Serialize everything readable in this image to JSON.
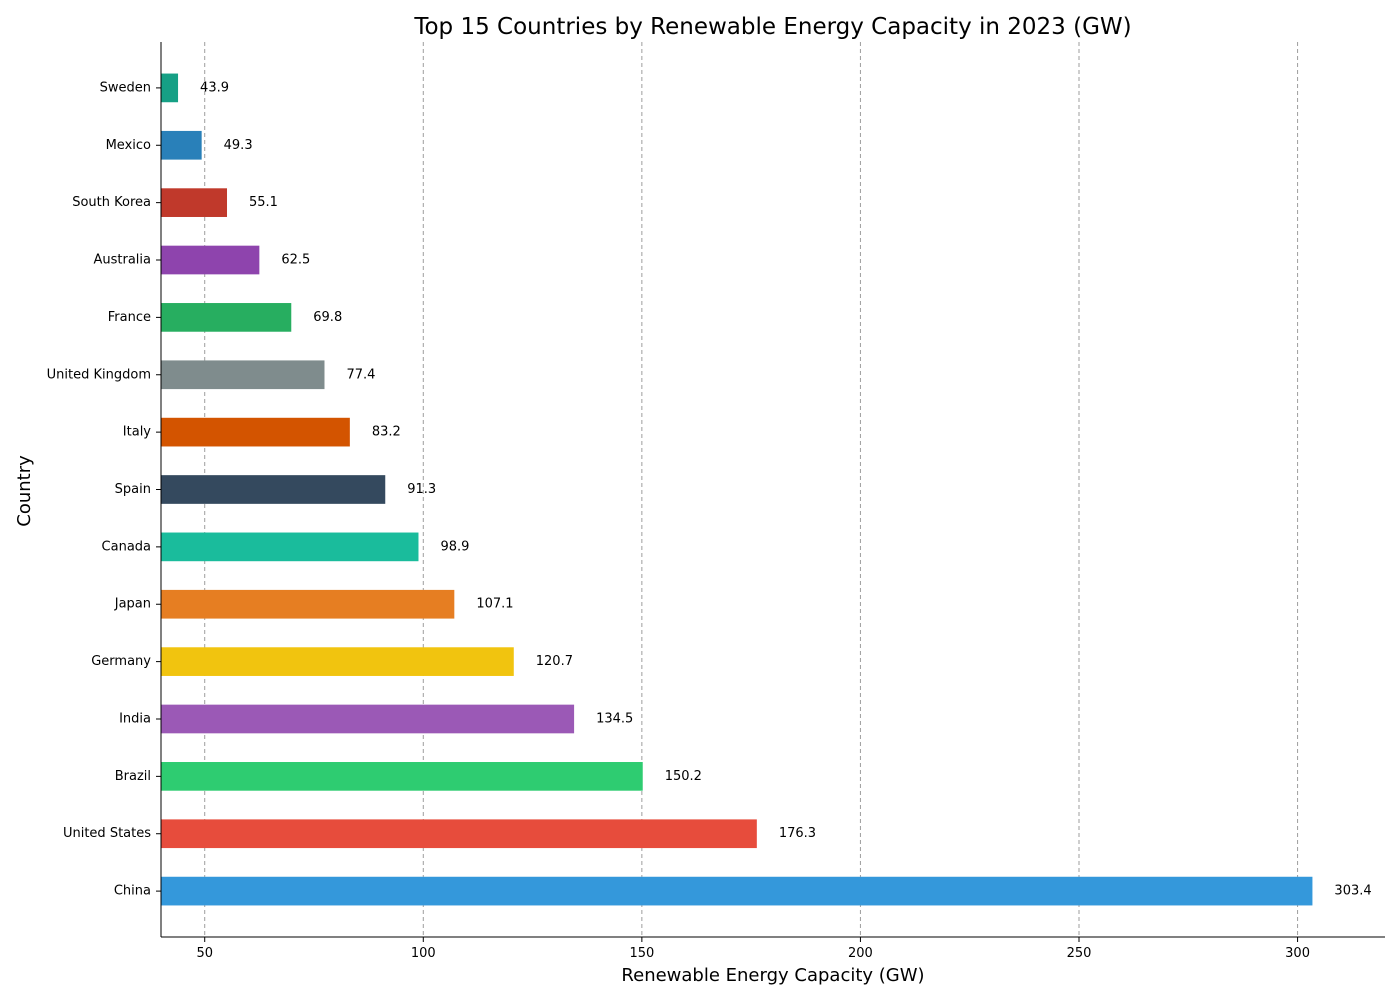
{
  "chart_data": {
    "type": "bar",
    "orientation": "horizontal",
    "title": "Top 15 Countries by Renewable Energy Capacity in 2023 (GW)",
    "xlabel": "Renewable Energy Capacity (GW)",
    "ylabel": "Country",
    "xlim": [
      40,
      320
    ],
    "xticks": [
      50,
      100,
      150,
      200,
      250,
      300
    ],
    "grid": "vertical-dashed",
    "categories": [
      "China",
      "United States",
      "Brazil",
      "India",
      "Germany",
      "Japan",
      "Canada",
      "Spain",
      "Italy",
      "United Kingdom",
      "France",
      "Australia",
      "South Korea",
      "Mexico",
      "Sweden"
    ],
    "values": [
      303.4,
      176.3,
      150.2,
      134.5,
      120.7,
      107.1,
      98.9,
      91.3,
      83.2,
      77.4,
      69.8,
      62.5,
      55.1,
      49.3,
      43.9
    ],
    "value_labels": [
      "303.4",
      "176.3",
      "150.2",
      "134.5",
      "120.7",
      "107.1",
      "98.9",
      "91.3",
      "83.2",
      "77.4",
      "69.8",
      "62.5",
      "55.1",
      "49.3",
      "43.9"
    ],
    "colors": [
      "#3498db",
      "#e74c3c",
      "#2ecc71",
      "#9b59b6",
      "#f1c40f",
      "#e67e22",
      "#1abc9c",
      "#34495e",
      "#d35400",
      "#7f8c8d",
      "#27ae60",
      "#8e44ad",
      "#c0392b",
      "#2980b9",
      "#16a085"
    ]
  }
}
